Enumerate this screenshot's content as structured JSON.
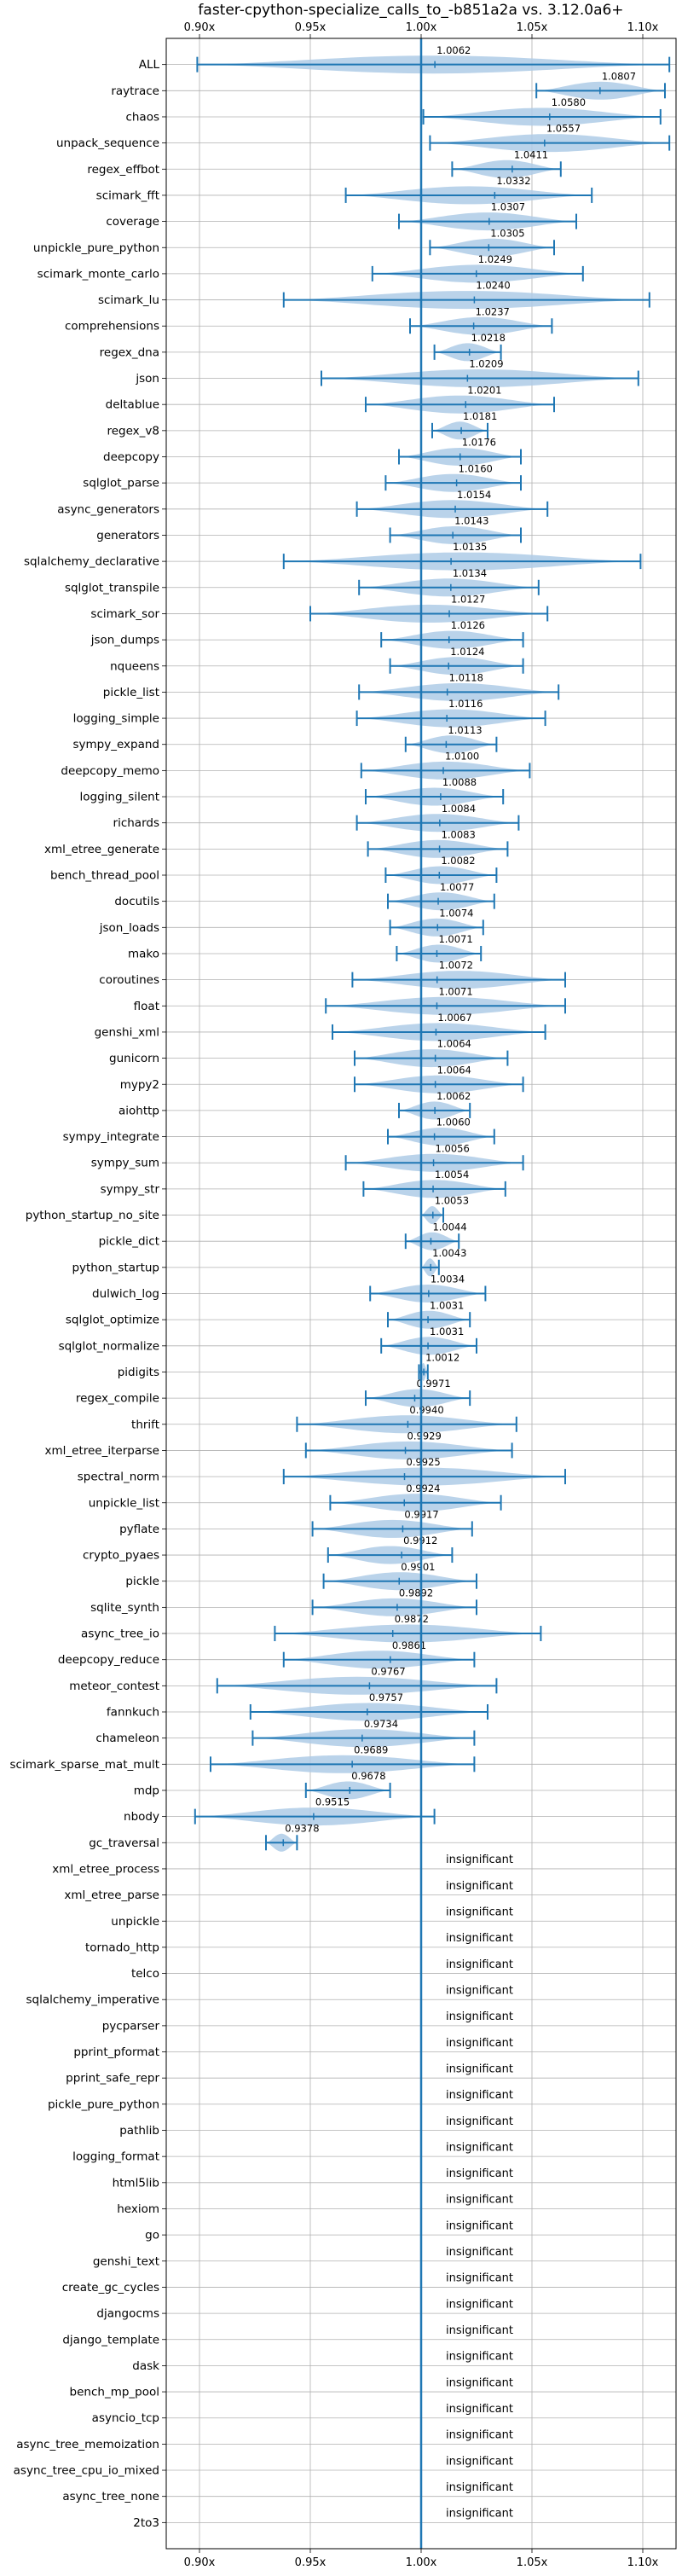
{
  "chart_data": {
    "type": "violin",
    "title": "faster-cpython-specialize_calls_to_-b851a2a vs. 3.12.0a6+",
    "xlim": [
      0.885,
      1.115
    ],
    "xticks": [
      0.9,
      0.95,
      1.0,
      1.05,
      1.1
    ],
    "xtick_labels": [
      "0.90x",
      "0.95x",
      "1.00x",
      "1.05x",
      "1.10x"
    ],
    "grid": true,
    "reference_line": 1.0,
    "accent_color": "#1f77b4",
    "violin_color": "#aecbe6",
    "insignificant_text": "insignificant",
    "benchmarks": [
      {
        "name": "ALL",
        "value": 1.0062,
        "label": "1.0062",
        "min": 0.899,
        "max": 1.112
      },
      {
        "name": "raytrace",
        "value": 1.0807,
        "label": "1.0807",
        "min": 1.052,
        "max": 1.11
      },
      {
        "name": "chaos",
        "value": 1.058,
        "label": "1.0580",
        "min": 1.001,
        "max": 1.108
      },
      {
        "name": "unpack_sequence",
        "value": 1.0557,
        "label": "1.0557",
        "min": 1.004,
        "max": 1.112
      },
      {
        "name": "regex_effbot",
        "value": 1.0411,
        "label": "1.0411",
        "min": 1.014,
        "max": 1.063
      },
      {
        "name": "scimark_fft",
        "value": 1.0332,
        "label": "1.0332",
        "min": 0.966,
        "max": 1.077
      },
      {
        "name": "coverage",
        "value": 1.0307,
        "label": "1.0307",
        "min": 0.99,
        "max": 1.07
      },
      {
        "name": "unpickle_pure_python",
        "value": 1.0305,
        "label": "1.0305",
        "min": 1.004,
        "max": 1.06
      },
      {
        "name": "scimark_monte_carlo",
        "value": 1.0249,
        "label": "1.0249",
        "min": 0.978,
        "max": 1.073
      },
      {
        "name": "scimark_lu",
        "value": 1.024,
        "label": "1.0240",
        "min": 0.938,
        "max": 1.103
      },
      {
        "name": "comprehensions",
        "value": 1.0237,
        "label": "1.0237",
        "min": 0.995,
        "max": 1.059
      },
      {
        "name": "regex_dna",
        "value": 1.0218,
        "label": "1.0218",
        "min": 1.006,
        "max": 1.036
      },
      {
        "name": "json",
        "value": 1.0209,
        "label": "1.0209",
        "min": 0.955,
        "max": 1.098
      },
      {
        "name": "deltablue",
        "value": 1.0201,
        "label": "1.0201",
        "min": 0.975,
        "max": 1.06
      },
      {
        "name": "regex_v8",
        "value": 1.0181,
        "label": "1.0181",
        "min": 1.005,
        "max": 1.03
      },
      {
        "name": "deepcopy",
        "value": 1.0176,
        "label": "1.0176",
        "min": 0.99,
        "max": 1.045
      },
      {
        "name": "sqlglot_parse",
        "value": 1.016,
        "label": "1.0160",
        "min": 0.984,
        "max": 1.045
      },
      {
        "name": "async_generators",
        "value": 1.0154,
        "label": "1.0154",
        "min": 0.971,
        "max": 1.057
      },
      {
        "name": "generators",
        "value": 1.0143,
        "label": "1.0143",
        "min": 0.986,
        "max": 1.045
      },
      {
        "name": "sqlalchemy_declarative",
        "value": 1.0135,
        "label": "1.0135",
        "min": 0.938,
        "max": 1.099
      },
      {
        "name": "sqlglot_transpile",
        "value": 1.0134,
        "label": "1.0134",
        "min": 0.972,
        "max": 1.053
      },
      {
        "name": "scimark_sor",
        "value": 1.0127,
        "label": "1.0127",
        "min": 0.95,
        "max": 1.057
      },
      {
        "name": "json_dumps",
        "value": 1.0126,
        "label": "1.0126",
        "min": 0.982,
        "max": 1.046
      },
      {
        "name": "nqueens",
        "value": 1.0124,
        "label": "1.0124",
        "min": 0.986,
        "max": 1.046
      },
      {
        "name": "pickle_list",
        "value": 1.0118,
        "label": "1.0118",
        "min": 0.972,
        "max": 1.062
      },
      {
        "name": "logging_simple",
        "value": 1.0116,
        "label": "1.0116",
        "min": 0.971,
        "max": 1.056
      },
      {
        "name": "sympy_expand",
        "value": 1.0113,
        "label": "1.0113",
        "min": 0.993,
        "max": 1.034
      },
      {
        "name": "deepcopy_memo",
        "value": 1.01,
        "label": "1.0100",
        "min": 0.973,
        "max": 1.049
      },
      {
        "name": "logging_silent",
        "value": 1.0088,
        "label": "1.0088",
        "min": 0.975,
        "max": 1.037
      },
      {
        "name": "richards",
        "value": 1.0084,
        "label": "1.0084",
        "min": 0.971,
        "max": 1.044
      },
      {
        "name": "xml_etree_generate",
        "value": 1.0083,
        "label": "1.0083",
        "min": 0.976,
        "max": 1.039
      },
      {
        "name": "bench_thread_pool",
        "value": 1.0082,
        "label": "1.0082",
        "min": 0.984,
        "max": 1.034
      },
      {
        "name": "docutils",
        "value": 1.0077,
        "label": "1.0077",
        "min": 0.985,
        "max": 1.033
      },
      {
        "name": "json_loads",
        "value": 1.0074,
        "label": "1.0074",
        "min": 0.986,
        "max": 1.028
      },
      {
        "name": "mako",
        "value": 1.0071,
        "label": "1.0071",
        "min": 0.989,
        "max": 1.027
      },
      {
        "name": "coroutines",
        "value": 1.0072,
        "label": "1.0072",
        "min": 0.969,
        "max": 1.065
      },
      {
        "name": "float",
        "value": 1.0071,
        "label": "1.0071",
        "min": 0.957,
        "max": 1.065
      },
      {
        "name": "genshi_xml",
        "value": 1.0067,
        "label": "1.0067",
        "min": 0.96,
        "max": 1.056
      },
      {
        "name": "gunicorn",
        "value": 1.0064,
        "label": "1.0064",
        "min": 0.97,
        "max": 1.039
      },
      {
        "name": "mypy2",
        "value": 1.0064,
        "label": "1.0064",
        "min": 0.97,
        "max": 1.046
      },
      {
        "name": "aiohttp",
        "value": 1.0062,
        "label": "1.0062",
        "min": 0.99,
        "max": 1.022
      },
      {
        "name": "sympy_integrate",
        "value": 1.006,
        "label": "1.0060",
        "min": 0.985,
        "max": 1.033
      },
      {
        "name": "sympy_sum",
        "value": 1.0056,
        "label": "1.0056",
        "min": 0.966,
        "max": 1.046
      },
      {
        "name": "sympy_str",
        "value": 1.0054,
        "label": "1.0054",
        "min": 0.974,
        "max": 1.038
      },
      {
        "name": "python_startup_no_site",
        "value": 1.0053,
        "label": "1.0053",
        "min": 1.0,
        "max": 1.01
      },
      {
        "name": "pickle_dict",
        "value": 1.0044,
        "label": "1.0044",
        "min": 0.993,
        "max": 1.017
      },
      {
        "name": "python_startup",
        "value": 1.0043,
        "label": "1.0043",
        "min": 1.0,
        "max": 1.008
      },
      {
        "name": "dulwich_log",
        "value": 1.0034,
        "label": "1.0034",
        "min": 0.977,
        "max": 1.029
      },
      {
        "name": "sqlglot_optimize",
        "value": 1.0031,
        "label": "1.0031",
        "min": 0.985,
        "max": 1.022
      },
      {
        "name": "sqlglot_normalize",
        "value": 1.0031,
        "label": "1.0031",
        "min": 0.982,
        "max": 1.025
      },
      {
        "name": "pidigits",
        "value": 1.0012,
        "label": "1.0012",
        "min": 0.999,
        "max": 1.003
      },
      {
        "name": "regex_compile",
        "value": 0.9971,
        "label": "0.9971",
        "min": 0.975,
        "max": 1.022
      },
      {
        "name": "thrift",
        "value": 0.994,
        "label": "0.9940",
        "min": 0.944,
        "max": 1.043
      },
      {
        "name": "xml_etree_iterparse",
        "value": 0.9929,
        "label": "0.9929",
        "min": 0.948,
        "max": 1.041
      },
      {
        "name": "spectral_norm",
        "value": 0.9925,
        "label": "0.9925",
        "min": 0.938,
        "max": 1.065
      },
      {
        "name": "unpickle_list",
        "value": 0.9924,
        "label": "0.9924",
        "min": 0.959,
        "max": 1.036
      },
      {
        "name": "pyflate",
        "value": 0.9917,
        "label": "0.9917",
        "min": 0.951,
        "max": 1.023
      },
      {
        "name": "crypto_pyaes",
        "value": 0.9912,
        "label": "0.9912",
        "min": 0.958,
        "max": 1.014
      },
      {
        "name": "pickle",
        "value": 0.9901,
        "label": "0.9901",
        "min": 0.956,
        "max": 1.025
      },
      {
        "name": "sqlite_synth",
        "value": 0.9892,
        "label": "0.9892",
        "min": 0.951,
        "max": 1.025
      },
      {
        "name": "async_tree_io",
        "value": 0.9872,
        "label": "0.9872",
        "min": 0.934,
        "max": 1.054
      },
      {
        "name": "deepcopy_reduce",
        "value": 0.9861,
        "label": "0.9861",
        "min": 0.938,
        "max": 1.024
      },
      {
        "name": "meteor_contest",
        "value": 0.9767,
        "label": "0.9767",
        "min": 0.908,
        "max": 1.034
      },
      {
        "name": "fannkuch",
        "value": 0.9757,
        "label": "0.9757",
        "min": 0.923,
        "max": 1.03
      },
      {
        "name": "chameleon",
        "value": 0.9734,
        "label": "0.9734",
        "min": 0.924,
        "max": 1.024
      },
      {
        "name": "scimark_sparse_mat_mult",
        "value": 0.9689,
        "label": "0.9689",
        "min": 0.905,
        "max": 1.024
      },
      {
        "name": "mdp",
        "value": 0.9678,
        "label": "0.9678",
        "min": 0.948,
        "max": 0.986
      },
      {
        "name": "nbody",
        "value": 0.9515,
        "label": "0.9515",
        "min": 0.898,
        "max": 1.006
      },
      {
        "name": "gc_traversal",
        "value": 0.9378,
        "label": "0.9378",
        "min": 0.93,
        "max": 0.944
      }
    ],
    "insignificant": [
      "xml_etree_process",
      "xml_etree_parse",
      "unpickle",
      "tornado_http",
      "telco",
      "sqlalchemy_imperative",
      "pycparser",
      "pprint_pformat",
      "pprint_safe_repr",
      "pickle_pure_python",
      "pathlib",
      "logging_format",
      "html5lib",
      "hexiom",
      "go",
      "genshi_text",
      "create_gc_cycles",
      "djangocms",
      "django_template",
      "dask",
      "bench_mp_pool",
      "asyncio_tcp",
      "async_tree_memoization",
      "async_tree_cpu_io_mixed",
      "async_tree_none",
      "2to3"
    ]
  }
}
